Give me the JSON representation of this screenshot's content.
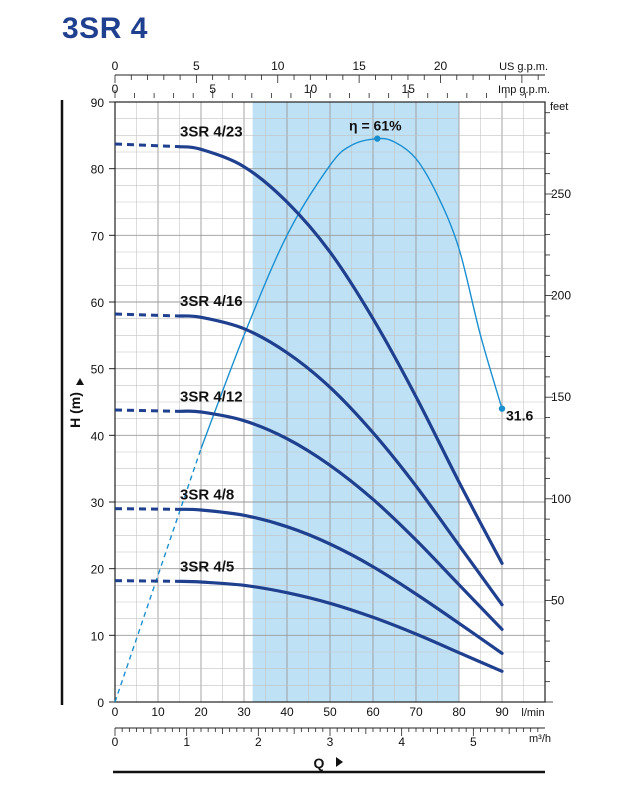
{
  "title": "3SR 4",
  "chart_data": {
    "type": "line",
    "xlabel": "Q",
    "ylabel": "H (m)",
    "x_unit": "l/min",
    "xlim": [
      0,
      100
    ],
    "ylim": [
      0,
      90
    ],
    "x_ticks": [
      0,
      10,
      20,
      30,
      40,
      50,
      60,
      70,
      80,
      90
    ],
    "y_ticks": [
      0,
      10,
      20,
      30,
      40,
      50,
      60,
      70,
      80,
      90
    ],
    "grid": true,
    "shaded_region": {
      "x_range": [
        32,
        80
      ],
      "color": "#bfe1f6"
    },
    "m3h_axis": {
      "unit": "m³/h",
      "ticks": [
        0,
        1,
        2,
        3,
        4,
        5
      ]
    },
    "us_gpm_axis": {
      "unit": "US g.p.m.",
      "ticks": [
        0,
        5,
        10,
        15,
        20
      ]
    },
    "imp_gpm_axis": {
      "unit": "Imp g.p.m.",
      "ticks": [
        0,
        5,
        10,
        15
      ]
    },
    "feet_axis": {
      "unit": "feet",
      "ticks": [
        50,
        100,
        150,
        200,
        250
      ]
    },
    "series": [
      {
        "name": "3SR 4/23",
        "dashed_from": 0,
        "x": [
          0,
          15,
          20,
          30,
          40,
          50,
          60,
          70,
          80,
          90
        ],
        "values": [
          83.7,
          83.3,
          82.9,
          80.3,
          75.0,
          67.5,
          57.5,
          45.8,
          33.0,
          20.8
        ]
      },
      {
        "name": "3SR 4/16",
        "dashed_from": 0,
        "x": [
          0,
          15,
          20,
          30,
          40,
          50,
          60,
          70,
          80,
          90
        ],
        "values": [
          58.2,
          57.9,
          57.7,
          56.0,
          52.4,
          47.2,
          40.4,
          32.4,
          23.5,
          14.6
        ]
      },
      {
        "name": "3SR 4/12",
        "dashed_from": 0,
        "x": [
          0,
          15,
          20,
          30,
          40,
          50,
          60,
          70,
          80,
          90
        ],
        "values": [
          43.8,
          43.6,
          43.5,
          42.2,
          39.5,
          35.5,
          30.4,
          24.3,
          17.6,
          10.9
        ]
      },
      {
        "name": "3SR 4/8",
        "dashed_from": 0,
        "x": [
          0,
          15,
          20,
          30,
          40,
          50,
          60,
          70,
          80,
          90
        ],
        "values": [
          29.0,
          28.9,
          28.8,
          28.0,
          26.3,
          23.7,
          20.3,
          16.2,
          11.8,
          7.3
        ]
      },
      {
        "name": "3SR 4/5",
        "dashed_from": 0,
        "x": [
          0,
          15,
          20,
          30,
          40,
          50,
          60,
          70,
          80,
          90
        ],
        "values": [
          18.2,
          18.1,
          18.0,
          17.5,
          16.4,
          14.8,
          12.7,
          10.2,
          7.4,
          4.6
        ]
      }
    ],
    "efficiency": {
      "label": "η = 61%",
      "end_label": "31.6",
      "dashed_until": 15,
      "x": [
        0,
        10,
        20,
        30,
        40,
        50,
        55,
        61,
        65,
        70,
        75,
        80,
        85,
        90
      ],
      "values": [
        0,
        19,
        38,
        55,
        70,
        80.5,
        83.5,
        84.5,
        84,
        81.5,
        76,
        68,
        55,
        44
      ]
    },
    "us_gpm_label": "US g.p.m.",
    "imp_gpm_label": "Imp g.p.m.",
    "feet_label": "feet",
    "lmin_label": "l/min",
    "m3h_label": "m³/h",
    "q_label": "Q",
    "h_label": "H (m)"
  }
}
